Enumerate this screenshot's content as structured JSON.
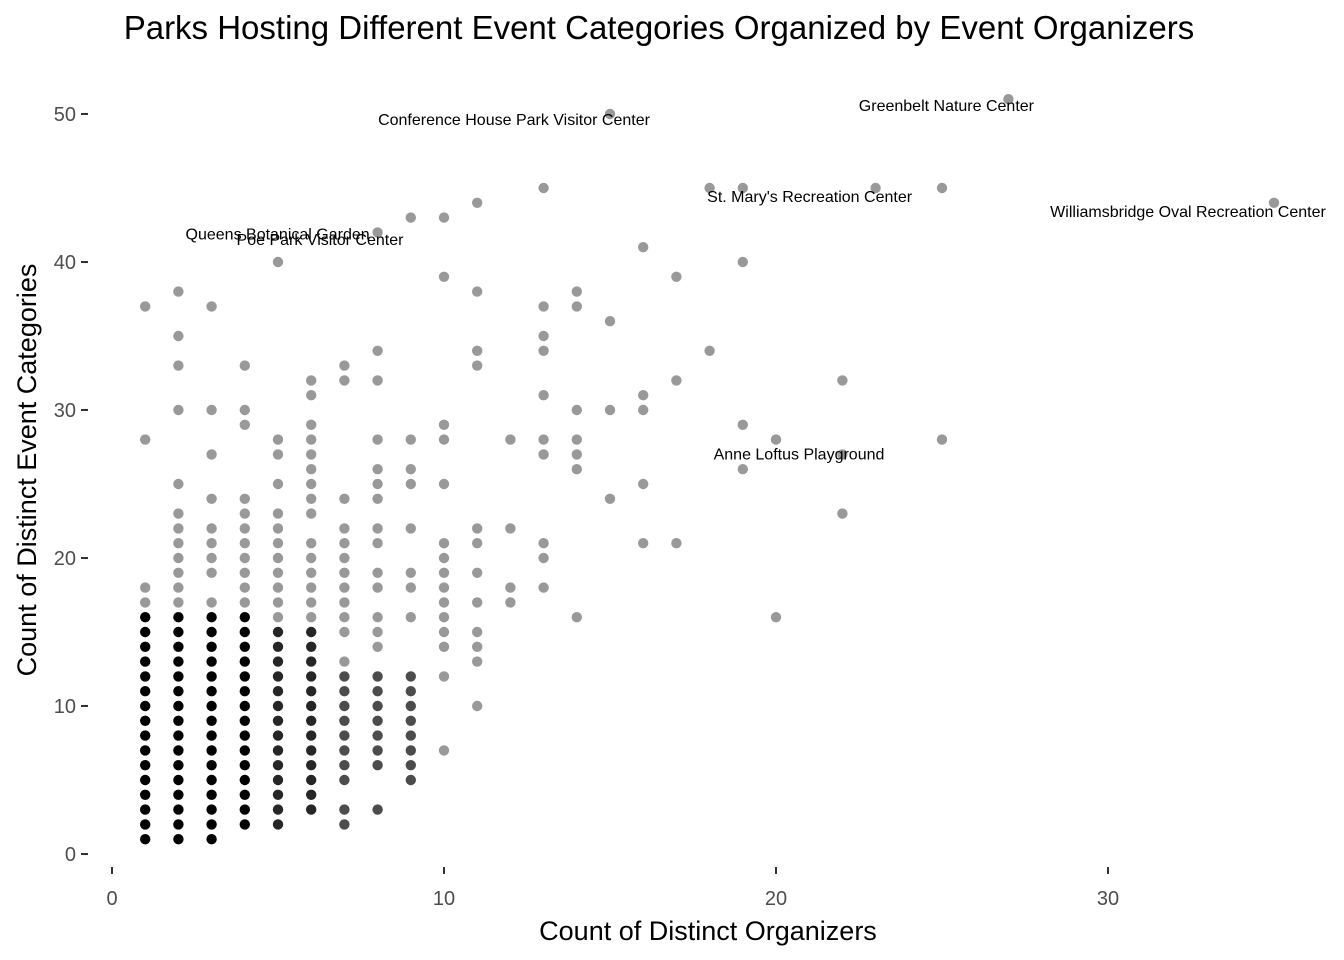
{
  "chart_data": {
    "type": "scatter",
    "title": "Parks Hosting Different Event Categories Organized by Event Organizers",
    "xlabel": "Count of Distinct Organizers",
    "ylabel": "Count of Distinct Event Categories",
    "xlim": [
      0,
      36
    ],
    "ylim": [
      0,
      52
    ],
    "x_ticks": [
      0,
      10,
      20,
      30
    ],
    "y_ticks": [
      0,
      10,
      20,
      30,
      40,
      50
    ],
    "grid": false,
    "point_color": "#000000",
    "point_opacity_note": "points drawn semi-transparent; overlapping points appear darker",
    "points": [
      [
        1,
        1
      ],
      [
        1,
        2
      ],
      [
        1,
        3
      ],
      [
        1,
        4
      ],
      [
        1,
        5
      ],
      [
        1,
        6
      ],
      [
        1,
        7
      ],
      [
        1,
        8
      ],
      [
        1,
        9
      ],
      [
        1,
        10
      ],
      [
        1,
        11
      ],
      [
        1,
        12
      ],
      [
        1,
        13
      ],
      [
        1,
        14
      ],
      [
        1,
        15
      ],
      [
        1,
        16
      ],
      [
        1,
        17
      ],
      [
        1,
        18
      ],
      [
        1,
        28
      ],
      [
        1,
        37
      ],
      [
        2,
        1
      ],
      [
        2,
        2
      ],
      [
        2,
        3
      ],
      [
        2,
        4
      ],
      [
        2,
        5
      ],
      [
        2,
        6
      ],
      [
        2,
        7
      ],
      [
        2,
        8
      ],
      [
        2,
        9
      ],
      [
        2,
        10
      ],
      [
        2,
        11
      ],
      [
        2,
        12
      ],
      [
        2,
        13
      ],
      [
        2,
        14
      ],
      [
        2,
        15
      ],
      [
        2,
        16
      ],
      [
        2,
        17
      ],
      [
        2,
        18
      ],
      [
        2,
        19
      ],
      [
        2,
        20
      ],
      [
        2,
        21
      ],
      [
        2,
        22
      ],
      [
        2,
        23
      ],
      [
        2,
        25
      ],
      [
        2,
        30
      ],
      [
        2,
        33
      ],
      [
        2,
        35
      ],
      [
        2,
        38
      ],
      [
        3,
        1
      ],
      [
        3,
        2
      ],
      [
        3,
        3
      ],
      [
        3,
        4
      ],
      [
        3,
        5
      ],
      [
        3,
        6
      ],
      [
        3,
        7
      ],
      [
        3,
        8
      ],
      [
        3,
        9
      ],
      [
        3,
        10
      ],
      [
        3,
        11
      ],
      [
        3,
        12
      ],
      [
        3,
        13
      ],
      [
        3,
        14
      ],
      [
        3,
        15
      ],
      [
        3,
        16
      ],
      [
        3,
        17
      ],
      [
        3,
        19
      ],
      [
        3,
        20
      ],
      [
        3,
        21
      ],
      [
        3,
        22
      ],
      [
        3,
        24
      ],
      [
        3,
        27
      ],
      [
        3,
        30
      ],
      [
        3,
        37
      ],
      [
        4,
        2
      ],
      [
        4,
        3
      ],
      [
        4,
        4
      ],
      [
        4,
        5
      ],
      [
        4,
        6
      ],
      [
        4,
        7
      ],
      [
        4,
        8
      ],
      [
        4,
        9
      ],
      [
        4,
        10
      ],
      [
        4,
        11
      ],
      [
        4,
        12
      ],
      [
        4,
        13
      ],
      [
        4,
        14
      ],
      [
        4,
        15
      ],
      [
        4,
        16
      ],
      [
        4,
        17
      ],
      [
        4,
        18
      ],
      [
        4,
        19
      ],
      [
        4,
        20
      ],
      [
        4,
        21
      ],
      [
        4,
        22
      ],
      [
        4,
        23
      ],
      [
        4,
        24
      ],
      [
        4,
        29
      ],
      [
        4,
        30
      ],
      [
        4,
        33
      ],
      [
        5,
        2
      ],
      [
        5,
        3
      ],
      [
        5,
        4
      ],
      [
        5,
        5
      ],
      [
        5,
        6
      ],
      [
        5,
        7
      ],
      [
        5,
        8
      ],
      [
        5,
        9
      ],
      [
        5,
        10
      ],
      [
        5,
        11
      ],
      [
        5,
        12
      ],
      [
        5,
        13
      ],
      [
        5,
        14
      ],
      [
        5,
        15
      ],
      [
        5,
        16
      ],
      [
        5,
        17
      ],
      [
        5,
        18
      ],
      [
        5,
        19
      ],
      [
        5,
        20
      ],
      [
        5,
        21
      ],
      [
        5,
        22
      ],
      [
        5,
        23
      ],
      [
        5,
        25
      ],
      [
        5,
        27
      ],
      [
        5,
        28
      ],
      [
        5,
        40
      ],
      [
        6,
        3
      ],
      [
        6,
        4
      ],
      [
        6,
        5
      ],
      [
        6,
        6
      ],
      [
        6,
        7
      ],
      [
        6,
        8
      ],
      [
        6,
        9
      ],
      [
        6,
        10
      ],
      [
        6,
        11
      ],
      [
        6,
        12
      ],
      [
        6,
        13
      ],
      [
        6,
        14
      ],
      [
        6,
        15
      ],
      [
        6,
        16
      ],
      [
        6,
        17
      ],
      [
        6,
        18
      ],
      [
        6,
        19
      ],
      [
        6,
        20
      ],
      [
        6,
        21
      ],
      [
        6,
        23
      ],
      [
        6,
        24
      ],
      [
        6,
        25
      ],
      [
        6,
        26
      ],
      [
        6,
        27
      ],
      [
        6,
        28
      ],
      [
        6,
        29
      ],
      [
        6,
        31
      ],
      [
        6,
        32
      ],
      [
        7,
        2
      ],
      [
        7,
        3
      ],
      [
        7,
        5
      ],
      [
        7,
        6
      ],
      [
        7,
        7
      ],
      [
        7,
        8
      ],
      [
        7,
        9
      ],
      [
        7,
        10
      ],
      [
        7,
        11
      ],
      [
        7,
        12
      ],
      [
        7,
        13
      ],
      [
        7,
        15
      ],
      [
        7,
        16
      ],
      [
        7,
        17
      ],
      [
        7,
        18
      ],
      [
        7,
        19
      ],
      [
        7,
        20
      ],
      [
        7,
        21
      ],
      [
        7,
        22
      ],
      [
        7,
        24
      ],
      [
        7,
        32
      ],
      [
        7,
        33
      ],
      [
        8,
        3
      ],
      [
        8,
        6
      ],
      [
        8,
        7
      ],
      [
        8,
        8
      ],
      [
        8,
        9
      ],
      [
        8,
        10
      ],
      [
        8,
        11
      ],
      [
        8,
        12
      ],
      [
        8,
        14
      ],
      [
        8,
        15
      ],
      [
        8,
        16
      ],
      [
        8,
        18
      ],
      [
        8,
        19
      ],
      [
        8,
        21
      ],
      [
        8,
        22
      ],
      [
        8,
        24
      ],
      [
        8,
        25
      ],
      [
        8,
        26
      ],
      [
        8,
        28
      ],
      [
        8,
        32
      ],
      [
        8,
        34
      ],
      [
        8,
        42
      ],
      [
        9,
        5
      ],
      [
        9,
        6
      ],
      [
        9,
        7
      ],
      [
        9,
        8
      ],
      [
        9,
        9
      ],
      [
        9,
        10
      ],
      [
        9,
        11
      ],
      [
        9,
        12
      ],
      [
        9,
        16
      ],
      [
        9,
        18
      ],
      [
        9,
        19
      ],
      [
        9,
        22
      ],
      [
        9,
        25
      ],
      [
        9,
        26
      ],
      [
        9,
        28
      ],
      [
        9,
        43
      ],
      [
        10,
        7
      ],
      [
        10,
        12
      ],
      [
        10,
        14
      ],
      [
        10,
        15
      ],
      [
        10,
        16
      ],
      [
        10,
        17
      ],
      [
        10,
        18
      ],
      [
        10,
        19
      ],
      [
        10,
        20
      ],
      [
        10,
        21
      ],
      [
        10,
        25
      ],
      [
        10,
        28
      ],
      [
        10,
        29
      ],
      [
        10,
        39
      ],
      [
        10,
        43
      ],
      [
        11,
        10
      ],
      [
        11,
        13
      ],
      [
        11,
        14
      ],
      [
        11,
        15
      ],
      [
        11,
        17
      ],
      [
        11,
        19
      ],
      [
        11,
        21
      ],
      [
        11,
        22
      ],
      [
        11,
        33
      ],
      [
        11,
        34
      ],
      [
        11,
        38
      ],
      [
        11,
        44
      ],
      [
        12,
        17
      ],
      [
        12,
        18
      ],
      [
        12,
        22
      ],
      [
        12,
        28
      ],
      [
        13,
        18
      ],
      [
        13,
        20
      ],
      [
        13,
        21
      ],
      [
        13,
        27
      ],
      [
        13,
        28
      ],
      [
        13,
        31
      ],
      [
        13,
        34
      ],
      [
        13,
        35
      ],
      [
        13,
        37
      ],
      [
        13,
        45
      ],
      [
        14,
        16
      ],
      [
        14,
        26
      ],
      [
        14,
        27
      ],
      [
        14,
        28
      ],
      [
        14,
        30
      ],
      [
        14,
        37
      ],
      [
        14,
        38
      ],
      [
        15,
        24
      ],
      [
        15,
        30
      ],
      [
        15,
        36
      ],
      [
        15,
        50
      ],
      [
        16,
        21
      ],
      [
        16,
        25
      ],
      [
        16,
        30
      ],
      [
        16,
        31
      ],
      [
        16,
        41
      ],
      [
        17,
        21
      ],
      [
        17,
        32
      ],
      [
        17,
        39
      ],
      [
        18,
        34
      ],
      [
        18,
        45
      ],
      [
        19,
        26
      ],
      [
        19,
        29
      ],
      [
        19,
        40
      ],
      [
        19,
        45
      ],
      [
        20,
        16
      ],
      [
        20,
        28
      ],
      [
        22,
        23
      ],
      [
        22,
        27
      ],
      [
        22,
        32
      ],
      [
        23,
        45
      ],
      [
        25,
        28
      ],
      [
        25,
        45
      ],
      [
        27,
        51
      ],
      [
        35,
        44
      ]
    ],
    "annotations": [
      {
        "text": "Greenbelt Nature Center",
        "x": 27,
        "y": 51
      },
      {
        "text": "Conference House Park Visitor Center",
        "x": 15,
        "y": 50
      },
      {
        "text": "St. Mary's Recreation Center",
        "x": 23,
        "y": 45
      },
      {
        "text": "Williamsbridge Oval Recreation Center",
        "x": 35,
        "y": 44
      },
      {
        "text": "Queens Botanical Garden",
        "x": 8,
        "y": 42
      },
      {
        "text": "Poe Park Visitor Center",
        "x": 5,
        "y": 40
      },
      {
        "text": "Anne Loftus Playground",
        "x": 25,
        "y": 28
      }
    ]
  }
}
